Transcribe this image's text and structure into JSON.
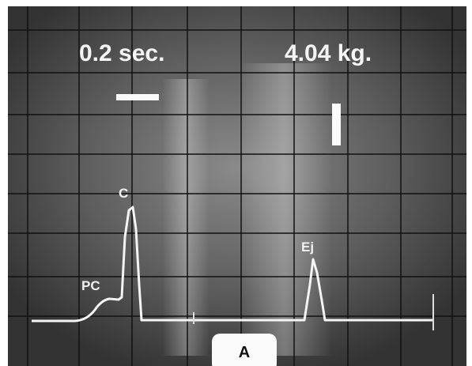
{
  "labels": {
    "time_scale": "0.2 sec.",
    "force_scale": "4.04 kg.",
    "peak_pc": "PC",
    "peak_c": "C",
    "peak_ej": "Ej",
    "panel": "A"
  }
}
